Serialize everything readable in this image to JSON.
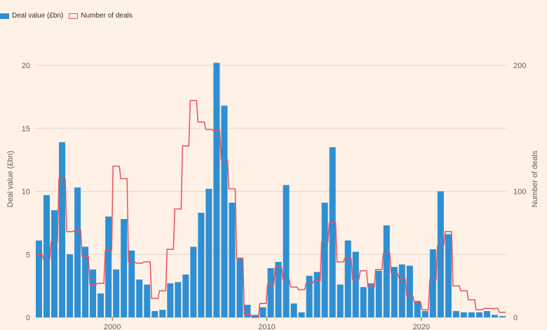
{
  "chart_data": {
    "type": "bar",
    "title": "",
    "xlabel": "",
    "ylabel_left": "Deal value (£bn)",
    "ylabel_right": "Number of deals",
    "legend_position": "top-left",
    "grid": true,
    "colors": {
      "bars": "#2e8fd2",
      "line": "#e8525e",
      "grid": "#d8cbbf",
      "background": "#fff1e5"
    },
    "x_ticks": [
      2000,
      2010,
      2020
    ],
    "y_left_ticks": [
      0,
      5,
      10,
      15,
      20
    ],
    "y_right_ticks": [
      0,
      100,
      200
    ],
    "ylim_left": [
      0,
      20
    ],
    "ylim_right": [
      0,
      200
    ],
    "x_range": [
      1995.0,
      2025.5
    ],
    "bar_width_years": 0.5,
    "series": [
      {
        "name": "Deal value (£bn)",
        "axis": "left",
        "kind": "bar",
        "x": [
          1995.0,
          1995.5,
          1996.0,
          1996.5,
          1997.0,
          1997.5,
          1998.0,
          1998.5,
          1999.0,
          1999.5,
          2000.0,
          2000.5,
          2001.0,
          2001.5,
          2002.0,
          2002.5,
          2003.0,
          2003.5,
          2004.0,
          2004.5,
          2005.0,
          2005.5,
          2006.0,
          2006.5,
          2007.0,
          2007.5,
          2008.0,
          2008.5,
          2009.0,
          2009.5,
          2010.0,
          2010.5,
          2011.0,
          2011.5,
          2012.0,
          2012.5,
          2013.0,
          2013.5,
          2014.0,
          2014.5,
          2015.0,
          2015.5,
          2016.0,
          2016.5,
          2017.0,
          2017.5,
          2018.0,
          2018.5,
          2019.0,
          2019.5,
          2020.0,
          2020.5,
          2021.0,
          2021.5,
          2022.0,
          2022.5,
          2023.0,
          2023.5,
          2024.0,
          2024.5,
          2025.0
        ],
        "values": [
          6.1,
          9.7,
          8.5,
          13.9,
          5.0,
          10.3,
          5.6,
          3.8,
          1.9,
          8.0,
          3.8,
          7.8,
          5.3,
          3.0,
          2.6,
          0.5,
          0.6,
          2.7,
          2.8,
          3.4,
          5.6,
          8.3,
          10.2,
          20.2,
          16.8,
          9.1,
          4.7,
          1.0,
          0.2,
          0.8,
          3.9,
          4.4,
          10.5,
          1.1,
          0.4,
          3.3,
          3.6,
          9.1,
          13.5,
          2.6,
          6.1,
          5.2,
          2.4,
          2.7,
          3.7,
          7.3,
          4.0,
          4.2,
          4.1,
          1.3,
          0.5,
          5.4,
          10.0,
          6.6,
          0.5,
          0.4,
          0.4,
          0.4,
          0.5,
          0.2,
          0.1
        ]
      },
      {
        "name": "Number of deals",
        "axis": "right",
        "kind": "step-line",
        "x": [
          1995.0,
          1995.5,
          1996.0,
          1996.5,
          1997.0,
          1997.5,
          1998.0,
          1998.5,
          1999.0,
          1999.5,
          2000.0,
          2000.5,
          2001.0,
          2001.5,
          2002.0,
          2002.5,
          2003.0,
          2003.5,
          2004.0,
          2004.5,
          2005.0,
          2005.5,
          2006.0,
          2006.5,
          2007.0,
          2007.5,
          2008.0,
          2008.5,
          2009.0,
          2009.5,
          2010.0,
          2010.5,
          2011.0,
          2011.5,
          2012.0,
          2012.5,
          2013.0,
          2013.5,
          2014.0,
          2014.5,
          2015.0,
          2015.5,
          2016.0,
          2016.5,
          2017.0,
          2017.5,
          2018.0,
          2018.5,
          2019.0,
          2019.5,
          2020.0,
          2020.5,
          2021.0,
          2021.5,
          2022.0,
          2022.5,
          2023.0,
          2023.5,
          2024.0,
          2024.5,
          2025.0
        ],
        "values": [
          50,
          46,
          60,
          110,
          68,
          69,
          48,
          26,
          27,
          53,
          120,
          110,
          44,
          43,
          44,
          15,
          21,
          54,
          86,
          136,
          172,
          155,
          149,
          148,
          125,
          102,
          47,
          2,
          0,
          11,
          26,
          40,
          30,
          24,
          22,
          27,
          29,
          60,
          75,
          44,
          47,
          30,
          37,
          24,
          38,
          51,
          35,
          31,
          17,
          12,
          6,
          30,
          57,
          68,
          25,
          21,
          14,
          6,
          7,
          7,
          4
        ]
      }
    ]
  }
}
